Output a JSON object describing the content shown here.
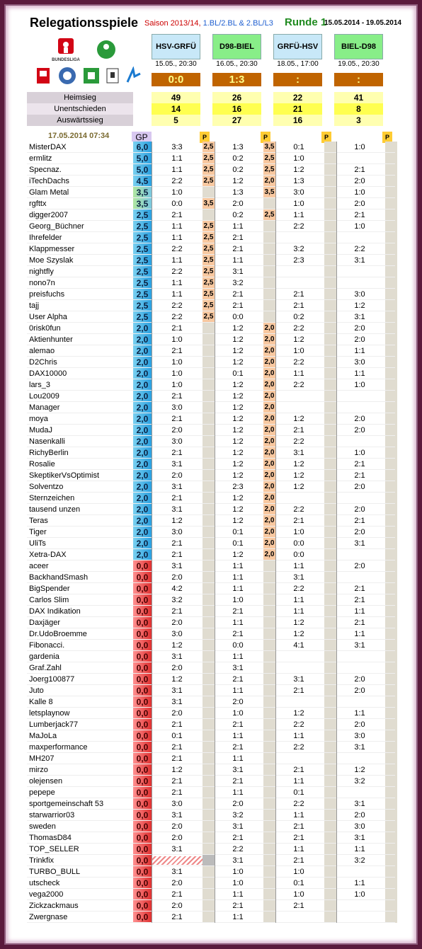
{
  "header": {
    "title": "Relegationsspiele",
    "saison_red": "Saison 2013/14, ",
    "saison_blue": "1.BL/2.BL & 2.BL/L3",
    "runde": "Runde 1",
    "date_range": "15.05.2014 - 19.05.2014",
    "timestamp": "17.05.2014 07:34",
    "gp_label": "GP",
    "p_label": "P",
    "logo_text": "BUNDESLIGA"
  },
  "matches": [
    {
      "name": "HSV-GRFÜ",
      "date": "15.05., 20:30",
      "result": "0:0",
      "green": false,
      "heimsieg": "49",
      "unentschieden": "14",
      "auswaertssieg": "5"
    },
    {
      "name": "D98-BIEL",
      "date": "16.05., 20:30",
      "result": "1:3",
      "green": true,
      "heimsieg": "26",
      "unentschieden": "16",
      "auswaertssieg": "27"
    },
    {
      "name": "GRFÜ-HSV",
      "date": "18.05., 17:00",
      "result": ":",
      "green": false,
      "heimsieg": "22",
      "unentschieden": "21",
      "auswaertssieg": "16"
    },
    {
      "name": "BIEL-D98",
      "date": "19.05., 20:30",
      "result": ":",
      "green": true,
      "heimsieg": "41",
      "unentschieden": "8",
      "auswaertssieg": "3"
    }
  ],
  "stat_labels": {
    "heimsieg": "Heimsieg",
    "unentschieden": "Unentschieden",
    "auswaertssieg": "Auswärtssieg"
  },
  "players": [
    {
      "name": "MisterDAX",
      "gp": "6,0",
      "c": "b",
      "t": [
        "3:3",
        "1:3",
        "0:1",
        "1:0"
      ],
      "p": [
        "2,5",
        "3,5",
        "",
        ""
      ]
    },
    {
      "name": "ermlitz",
      "gp": "5,0",
      "c": "b",
      "t": [
        "1:1",
        "0:2",
        "1:0",
        ""
      ],
      "p": [
        "2,5",
        "2,5",
        "",
        ""
      ]
    },
    {
      "name": "Specnaz.",
      "gp": "5,0",
      "c": "b",
      "t": [
        "1:1",
        "0:2",
        "1:2",
        "2:1"
      ],
      "p": [
        "2,5",
        "2,5",
        "",
        ""
      ]
    },
    {
      "name": "iTechDachs",
      "gp": "4,5",
      "c": "b",
      "t": [
        "2:2",
        "1:2",
        "1:3",
        "2:0"
      ],
      "p": [
        "2,5",
        "2,0",
        "",
        ""
      ]
    },
    {
      "name": "Glam Metal",
      "gp": "3,5",
      "c": "t",
      "t": [
        "1:0",
        "1:3",
        "3:0",
        "1:0"
      ],
      "p": [
        "",
        "3,5",
        "",
        ""
      ]
    },
    {
      "name": "rgfttx",
      "gp": "3,5",
      "c": "t",
      "t": [
        "0:0",
        "2:0",
        "1:0",
        "2:0"
      ],
      "p": [
        "3,5",
        "",
        "",
        ""
      ]
    },
    {
      "name": "digger2007",
      "gp": "2,5",
      "c": "b",
      "t": [
        "2:1",
        "0:2",
        "1:1",
        "2:1"
      ],
      "p": [
        "",
        "2,5",
        "",
        ""
      ]
    },
    {
      "name": "Georg_Büchner",
      "gp": "2,5",
      "c": "b",
      "t": [
        "1:1",
        "1:1",
        "2:2",
        "1:0"
      ],
      "p": [
        "2,5",
        "",
        "",
        ""
      ]
    },
    {
      "name": "Ihrefelder",
      "gp": "2,5",
      "c": "b",
      "t": [
        "1:1",
        "2:1",
        "",
        ""
      ],
      "p": [
        "2,5",
        "",
        "",
        ""
      ]
    },
    {
      "name": "Klappmesser",
      "gp": "2,5",
      "c": "b",
      "t": [
        "2:2",
        "2:1",
        "3:2",
        "2:2"
      ],
      "p": [
        "2,5",
        "",
        "",
        ""
      ]
    },
    {
      "name": "Moe Szyslak",
      "gp": "2,5",
      "c": "b",
      "t": [
        "1:1",
        "1:1",
        "2:3",
        "3:1"
      ],
      "p": [
        "2,5",
        "",
        "",
        ""
      ]
    },
    {
      "name": "nightfly",
      "gp": "2,5",
      "c": "b",
      "t": [
        "2:2",
        "3:1",
        "",
        ""
      ],
      "p": [
        "2,5",
        "",
        "",
        ""
      ]
    },
    {
      "name": "nono7n",
      "gp": "2,5",
      "c": "b",
      "t": [
        "1:1",
        "3:2",
        "",
        ""
      ],
      "p": [
        "2,5",
        "",
        "",
        ""
      ]
    },
    {
      "name": "preisfuchs",
      "gp": "2,5",
      "c": "b",
      "t": [
        "1:1",
        "2:1",
        "2:1",
        "3:0"
      ],
      "p": [
        "2,5",
        "",
        "",
        ""
      ]
    },
    {
      "name": "tajj",
      "gp": "2,5",
      "c": "b",
      "t": [
        "2:2",
        "2:1",
        "2:1",
        "1:2"
      ],
      "p": [
        "2,5",
        "",
        "",
        ""
      ]
    },
    {
      "name": "User Alpha",
      "gp": "2,5",
      "c": "b",
      "t": [
        "2:2",
        "0:0",
        "0:2",
        "3:1"
      ],
      "p": [
        "2,5",
        "",
        "",
        ""
      ]
    },
    {
      "name": "0risk0fun",
      "gp": "2,0",
      "c": "b",
      "t": [
        "2:1",
        "1:2",
        "2:2",
        "2:0"
      ],
      "p": [
        "",
        "2,0",
        "",
        ""
      ]
    },
    {
      "name": "Aktienhunter",
      "gp": "2,0",
      "c": "b",
      "t": [
        "1:0",
        "1:2",
        "1:2",
        "2:0"
      ],
      "p": [
        "",
        "2,0",
        "",
        ""
      ]
    },
    {
      "name": "alemao",
      "gp": "2,0",
      "c": "b",
      "t": [
        "2:1",
        "1:2",
        "1:0",
        "1:1"
      ],
      "p": [
        "",
        "2,0",
        "",
        ""
      ]
    },
    {
      "name": "D2Chris",
      "gp": "2,0",
      "c": "b",
      "t": [
        "1:0",
        "1:2",
        "2:2",
        "3:0"
      ],
      "p": [
        "",
        "2,0",
        "",
        ""
      ]
    },
    {
      "name": "DAX10000",
      "gp": "2,0",
      "c": "b",
      "t": [
        "1:0",
        "0:1",
        "1:1",
        "1:1"
      ],
      "p": [
        "",
        "2,0",
        "",
        ""
      ]
    },
    {
      "name": "lars_3",
      "gp": "2,0",
      "c": "b",
      "t": [
        "1:0",
        "1:2",
        "2:2",
        "1:0"
      ],
      "p": [
        "",
        "2,0",
        "",
        ""
      ]
    },
    {
      "name": "Lou2009",
      "gp": "2,0",
      "c": "b",
      "t": [
        "2:1",
        "1:2",
        "",
        ""
      ],
      "p": [
        "",
        "2,0",
        "",
        ""
      ]
    },
    {
      "name": "Manager",
      "gp": "2,0",
      "c": "b",
      "t": [
        "3:0",
        "1:2",
        "",
        ""
      ],
      "p": [
        "",
        "2,0",
        "",
        ""
      ]
    },
    {
      "name": "moya",
      "gp": "2,0",
      "c": "b",
      "t": [
        "2:1",
        "1:2",
        "1:2",
        "2:0"
      ],
      "p": [
        "",
        "2,0",
        "",
        ""
      ]
    },
    {
      "name": "MudaJ",
      "gp": "2,0",
      "c": "b",
      "t": [
        "2:0",
        "1:2",
        "2:1",
        "2:0"
      ],
      "p": [
        "",
        "2,0",
        "",
        ""
      ]
    },
    {
      "name": "Nasenkalli",
      "gp": "2,0",
      "c": "b",
      "t": [
        "3:0",
        "1:2",
        "2:2",
        ""
      ],
      "p": [
        "",
        "2,0",
        "",
        ""
      ]
    },
    {
      "name": "RichyBerlin",
      "gp": "2,0",
      "c": "b",
      "t": [
        "2:1",
        "1:2",
        "3:1",
        "1:0"
      ],
      "p": [
        "",
        "2,0",
        "",
        ""
      ]
    },
    {
      "name": "Rosalie",
      "gp": "2,0",
      "c": "b",
      "t": [
        "3:1",
        "1:2",
        "1:2",
        "2:1"
      ],
      "p": [
        "",
        "2,0",
        "",
        ""
      ]
    },
    {
      "name": "SkeptikerVsOptimist",
      "gp": "2,0",
      "c": "b",
      "t": [
        "2:0",
        "1:2",
        "1:2",
        "2:1"
      ],
      "p": [
        "",
        "2,0",
        "",
        ""
      ]
    },
    {
      "name": "Solventzo",
      "gp": "2,0",
      "c": "b",
      "t": [
        "3:1",
        "2:3",
        "1:2",
        "2:0"
      ],
      "p": [
        "",
        "2,0",
        "",
        ""
      ]
    },
    {
      "name": "Sternzeichen",
      "gp": "2,0",
      "c": "b",
      "t": [
        "2:1",
        "1:2",
        "",
        ""
      ],
      "p": [
        "",
        "2,0",
        "",
        ""
      ]
    },
    {
      "name": "tausend unzen",
      "gp": "2,0",
      "c": "b",
      "t": [
        "3:1",
        "1:2",
        "2:2",
        "2:0"
      ],
      "p": [
        "",
        "2,0",
        "",
        ""
      ]
    },
    {
      "name": "Teras",
      "gp": "2,0",
      "c": "b",
      "t": [
        "1:2",
        "1:2",
        "2:1",
        "2:1"
      ],
      "p": [
        "",
        "2,0",
        "",
        ""
      ]
    },
    {
      "name": "Tiger",
      "gp": "2,0",
      "c": "b",
      "t": [
        "3:0",
        "0:1",
        "1:0",
        "2:0"
      ],
      "p": [
        "",
        "2,0",
        "",
        ""
      ]
    },
    {
      "name": "UliTs",
      "gp": "2,0",
      "c": "b",
      "t": [
        "2:1",
        "0:1",
        "0:0",
        "3:1"
      ],
      "p": [
        "",
        "2,0",
        "",
        ""
      ]
    },
    {
      "name": "Xetra-DAX",
      "gp": "2,0",
      "c": "b",
      "t": [
        "2:1",
        "1:2",
        "0:0",
        ""
      ],
      "p": [
        "",
        "2,0",
        "",
        ""
      ]
    },
    {
      "name": "aceer",
      "gp": "0,0",
      "c": "r",
      "t": [
        "3:1",
        "1:1",
        "1:1",
        "2:0"
      ],
      "p": [
        "",
        "",
        "",
        ""
      ]
    },
    {
      "name": "BackhandSmash",
      "gp": "0,0",
      "c": "r",
      "t": [
        "2:0",
        "1:1",
        "3:1",
        ""
      ],
      "p": [
        "",
        "",
        "",
        ""
      ]
    },
    {
      "name": "BigSpender",
      "gp": "0,0",
      "c": "r",
      "t": [
        "4:2",
        "1:1",
        "2:2",
        "2:1"
      ],
      "p": [
        "",
        "",
        "",
        ""
      ]
    },
    {
      "name": "Carlos Slim",
      "gp": "0,0",
      "c": "r",
      "t": [
        "3:2",
        "1:0",
        "1:1",
        "2:1"
      ],
      "p": [
        "",
        "",
        "",
        ""
      ]
    },
    {
      "name": "DAX Indikation",
      "gp": "0,0",
      "c": "r",
      "t": [
        "2:1",
        "2:1",
        "1:1",
        "1:1"
      ],
      "p": [
        "",
        "",
        "",
        ""
      ]
    },
    {
      "name": "Daxjäger",
      "gp": "0,0",
      "c": "r",
      "t": [
        "2:0",
        "1:1",
        "1:2",
        "2:1"
      ],
      "p": [
        "",
        "",
        "",
        ""
      ]
    },
    {
      "name": "Dr.UdoBroemme",
      "gp": "0,0",
      "c": "r",
      "t": [
        "3:0",
        "2:1",
        "1:2",
        "1:1"
      ],
      "p": [
        "",
        "",
        "",
        ""
      ]
    },
    {
      "name": "Fibonacci.",
      "gp": "0,0",
      "c": "r",
      "t": [
        "1:2",
        "0:0",
        "4:1",
        "3:1"
      ],
      "p": [
        "",
        "",
        "",
        ""
      ]
    },
    {
      "name": "gardenia",
      "gp": "0,0",
      "c": "r",
      "t": [
        "3:1",
        "1:1",
        "",
        ""
      ],
      "p": [
        "",
        "",
        "",
        ""
      ]
    },
    {
      "name": "Graf.Zahl",
      "gp": "0,0",
      "c": "r",
      "t": [
        "2:0",
        "3:1",
        "",
        ""
      ],
      "p": [
        "",
        "",
        "",
        ""
      ]
    },
    {
      "name": "Joerg100877",
      "gp": "0,0",
      "c": "r",
      "t": [
        "1:2",
        "2:1",
        "3:1",
        "2:0"
      ],
      "p": [
        "",
        "",
        "",
        ""
      ]
    },
    {
      "name": "Juto",
      "gp": "0,0",
      "c": "r",
      "t": [
        "3:1",
        "1:1",
        "2:1",
        "2:0"
      ],
      "p": [
        "",
        "",
        "",
        ""
      ]
    },
    {
      "name": "Kalle 8",
      "gp": "0,0",
      "c": "r",
      "t": [
        "3:1",
        "2:0",
        "",
        ""
      ],
      "p": [
        "",
        "",
        "",
        ""
      ]
    },
    {
      "name": "letsplaynow",
      "gp": "0,0",
      "c": "r",
      "t": [
        "2:0",
        "1:0",
        "1:2",
        "1:1"
      ],
      "p": [
        "",
        "",
        "",
        ""
      ]
    },
    {
      "name": "Lumberjack77",
      "gp": "0,0",
      "c": "r",
      "t": [
        "2:1",
        "2:1",
        "2:2",
        "2:0"
      ],
      "p": [
        "",
        "",
        "",
        ""
      ]
    },
    {
      "name": "MaJoLa",
      "gp": "0,0",
      "c": "r",
      "t": [
        "0:1",
        "1:1",
        "1:1",
        "3:0"
      ],
      "p": [
        "",
        "",
        "",
        ""
      ]
    },
    {
      "name": "maxperformance",
      "gp": "0,0",
      "c": "r",
      "t": [
        "2:1",
        "2:1",
        "2:2",
        "3:1"
      ],
      "p": [
        "",
        "",
        "",
        ""
      ]
    },
    {
      "name": "MH207",
      "gp": "0,0",
      "c": "r",
      "t": [
        "2:1",
        "1:1",
        "",
        ""
      ],
      "p": [
        "",
        "",
        "",
        ""
      ]
    },
    {
      "name": "mirzo",
      "gp": "0,0",
      "c": "r",
      "t": [
        "1:2",
        "3:1",
        "2:1",
        "1:2"
      ],
      "p": [
        "",
        "",
        "",
        ""
      ]
    },
    {
      "name": "olejensen",
      "gp": "0,0",
      "c": "r",
      "t": [
        "2:1",
        "2:1",
        "1:1",
        "3:2"
      ],
      "p": [
        "",
        "",
        "",
        ""
      ]
    },
    {
      "name": "pepepe",
      "gp": "0,0",
      "c": "r",
      "t": [
        "2:1",
        "1:1",
        "0:1",
        ""
      ],
      "p": [
        "",
        "",
        "",
        ""
      ]
    },
    {
      "name": "sportgemeinschaft 53",
      "gp": "0,0",
      "c": "r",
      "t": [
        "3:0",
        "2:0",
        "2:2",
        "3:1"
      ],
      "p": [
        "",
        "",
        "",
        ""
      ]
    },
    {
      "name": "starwarrior03",
      "gp": "0,0",
      "c": "r",
      "t": [
        "3:1",
        "3:2",
        "1:1",
        "2:0"
      ],
      "p": [
        "",
        "",
        "",
        ""
      ]
    },
    {
      "name": "sweden",
      "gp": "0,0",
      "c": "r",
      "t": [
        "2:0",
        "3:1",
        "2:1",
        "3:0"
      ],
      "p": [
        "",
        "",
        "",
        ""
      ]
    },
    {
      "name": "ThomasD84",
      "gp": "0,0",
      "c": "r",
      "t": [
        "2:0",
        "2:1",
        "2:1",
        "3:1"
      ],
      "p": [
        "",
        "",
        "",
        ""
      ]
    },
    {
      "name": "TOP_SELLER",
      "gp": "0,0",
      "c": "r",
      "t": [
        "3:1",
        "2:2",
        "1:1",
        "1:1"
      ],
      "p": [
        "",
        "",
        "",
        ""
      ]
    },
    {
      "name": "Trinkfix",
      "gp": "0,0",
      "c": "r",
      "t": [
        "",
        "3:1",
        "2:1",
        "3:2"
      ],
      "p": [
        "",
        "",
        "",
        ""
      ],
      "hatch": true
    },
    {
      "name": "TURBO_BULL",
      "gp": "0,0",
      "c": "r",
      "t": [
        "3:1",
        "1:0",
        "1:0",
        ""
      ],
      "p": [
        "",
        "",
        "",
        ""
      ]
    },
    {
      "name": "utscheck",
      "gp": "0,0",
      "c": "r",
      "t": [
        "2:0",
        "1:0",
        "0:1",
        "1:1"
      ],
      "p": [
        "",
        "",
        "",
        ""
      ]
    },
    {
      "name": "vega2000",
      "gp": "0,0",
      "c": "r",
      "t": [
        "2:1",
        "1:1",
        "1:0",
        "1:0"
      ],
      "p": [
        "",
        "",
        "",
        ""
      ]
    },
    {
      "name": "Zickzackmaus",
      "gp": "0,0",
      "c": "r",
      "t": [
        "2:0",
        "2:1",
        "2:1",
        ""
      ],
      "p": [
        "",
        "",
        "",
        ""
      ]
    },
    {
      "name": "Zwergnase",
      "gp": "0,0",
      "c": "r",
      "t": [
        "2:1",
        "1:1",
        "",
        ""
      ],
      "p": [
        "",
        "",
        "",
        ""
      ]
    }
  ]
}
